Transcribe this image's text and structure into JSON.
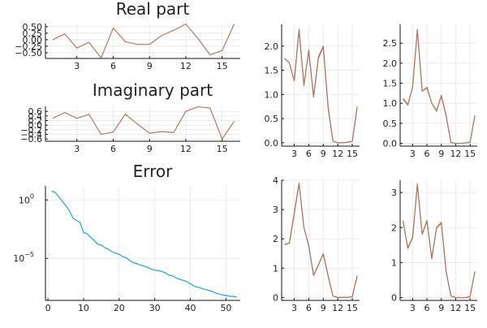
{
  "colors": {
    "series_main": "#B07A62",
    "series_error": "#1FA2DB"
  },
  "chart_data": [
    {
      "id": "real",
      "type": "line",
      "title": "Real part",
      "xlabel": "",
      "ylabel": "",
      "x": [
        1,
        2,
        3,
        4,
        5,
        6,
        7,
        8,
        9,
        10,
        11,
        12,
        13,
        14,
        15,
        16
      ],
      "series": [
        {
          "values": [
            0.0,
            0.22,
            -0.32,
            -0.1,
            -0.7,
            0.45,
            -0.08,
            -0.18,
            -0.18,
            0.16,
            0.36,
            0.6,
            0.05,
            -0.58,
            -0.42,
            0.6
          ]
        }
      ],
      "xlim": [
        0.4,
        16.5
      ],
      "ylim": [
        -0.72,
        0.62
      ],
      "xticks": [
        3,
        6,
        9,
        12,
        15
      ],
      "yticks": [
        -0.5,
        -0.25,
        0,
        0.25,
        0.5
      ],
      "xticklabels": [
        "3",
        "6",
        "9",
        "12",
        "15"
      ],
      "yticklabels": [
        "−0.50",
        "−0.25",
        "0.00",
        "0.25",
        "0.50"
      ],
      "grid": true
    },
    {
      "id": "imag",
      "type": "line",
      "title": "Imaginary part",
      "xlabel": "",
      "ylabel": "",
      "x": [
        1,
        2,
        3,
        4,
        5,
        6,
        7,
        8,
        9,
        10,
        11,
        12,
        13,
        14,
        15,
        16
      ],
      "series": [
        {
          "values": [
            0.3,
            0.55,
            0.3,
            0.47,
            -0.4,
            -0.3,
            0.48,
            0.05,
            -0.35,
            -0.28,
            -0.32,
            0.6,
            0.8,
            0.75,
            -0.6,
            0.17
          ]
        }
      ],
      "xlim": [
        0.4,
        16.5
      ],
      "ylim": [
        -0.7,
        0.82
      ],
      "xticks": [
        3,
        6,
        9,
        12,
        15
      ],
      "yticks": [
        -0.6,
        -0.4,
        -0.2,
        0,
        0.2,
        0.4,
        0.6
      ],
      "xticklabels": [
        "3",
        "6",
        "9",
        "12",
        "15"
      ],
      "yticklabels": [
        "−0.6",
        "−0.4",
        "−0.2",
        "0.0",
        "0.2",
        "0.4",
        "0.6"
      ],
      "grid": true
    },
    {
      "id": "error",
      "type": "line",
      "title": "Error",
      "xlabel": "",
      "ylabel": "",
      "yscale": "log",
      "x": [
        1,
        2,
        3,
        4,
        5,
        6,
        7,
        8,
        9,
        10,
        11,
        12,
        13,
        14,
        15,
        16,
        17,
        18,
        19,
        20,
        21,
        22,
        23,
        24,
        25,
        26,
        27,
        28,
        29,
        30,
        31,
        32,
        33,
        34,
        35,
        36,
        37,
        38,
        39,
        40,
        41,
        42,
        43,
        44,
        45,
        46,
        47,
        48,
        49,
        50,
        51,
        52,
        53
      ],
      "series": [
        {
          "values": [
            5.6,
            4.5,
            2.0,
            0.8,
            0.32,
            0.13,
            0.028,
            0.018,
            0.012,
            0.0016,
            0.0013,
            0.00063,
            0.00034,
            0.00016,
            0.00014,
            8e-05,
            6e-05,
            3.6e-05,
            2.8e-05,
            2.2e-05,
            1.4e-05,
            1.1e-05,
            6.7e-06,
            4.2e-06,
            3.5e-06,
            2.6e-06,
            2.2e-06,
            1.7e-06,
            1.2e-06,
            9.6e-07,
            8.9e-07,
            7.5e-07,
            5.6e-07,
            3.6e-07,
            3.2e-07,
            2.1e-07,
            1.6e-07,
            1.3e-07,
            1e-07,
            6.7e-08,
            4.2e-08,
            3.5e-08,
            2.8e-08,
            2.2e-08,
            1.9e-08,
            1.5e-08,
            1.1e-08,
            8.9e-09,
            7.5e-09,
            6.7e-09,
            5.6e-09,
            5.6e-09,
            4.7e-09
          ]
        }
      ],
      "xlim": [
        -0.7,
        54
      ],
      "ylim_log10": [
        -8.6,
        1.2
      ],
      "xticks": [
        0,
        10,
        20,
        30,
        40,
        50
      ],
      "yticks_log10": [
        0,
        -5
      ],
      "xticklabels": [
        "0",
        "10",
        "20",
        "30",
        "40",
        "50"
      ],
      "yticklabels": [
        "10",
        "10"
      ],
      "yticklabel_exponents": [
        "0",
        "−5"
      ],
      "grid": true
    },
    {
      "id": "abs-top-left",
      "type": "line",
      "title": "",
      "xlabel": "",
      "ylabel": "",
      "x": [
        1,
        2,
        3,
        4,
        5,
        6,
        7,
        8,
        9,
        10,
        11,
        12,
        13,
        14,
        15,
        16
      ],
      "series": [
        {
          "values": [
            1.75,
            1.65,
            1.28,
            2.35,
            1.2,
            1.9,
            0.95,
            1.75,
            1.98,
            0.75,
            0.03,
            0.0,
            0.0,
            0.01,
            0.03,
            0.75
          ]
        },
        {
          "values": [
            1.75,
            1.65,
            1.28,
            2.32,
            1.18,
            1.92,
            0.95,
            1.78,
            2.0,
            0.72,
            0.03,
            0.0,
            0.0,
            0.01,
            0.03,
            0.73
          ]
        }
      ],
      "xlim": [
        0.4,
        16.5
      ],
      "ylim": [
        -0.07,
        2.45
      ],
      "xticks": [
        3,
        6,
        9,
        12,
        15
      ],
      "yticks": [
        0,
        0.5,
        1.0,
        1.5,
        2.0
      ],
      "xticklabels": [
        "3",
        "6",
        "9",
        "12",
        "15"
      ],
      "yticklabels": [
        "0.0",
        "0.5",
        "1.0",
        "1.5",
        "2.0"
      ],
      "grid": true
    },
    {
      "id": "abs-top-right",
      "type": "line",
      "title": "",
      "xlabel": "",
      "ylabel": "",
      "x": [
        1,
        2,
        3,
        4,
        5,
        6,
        7,
        8,
        9,
        10,
        11,
        12,
        13,
        14,
        15,
        16
      ],
      "series": [
        {
          "values": [
            1.1,
            0.95,
            1.4,
            2.85,
            1.3,
            1.4,
            1.0,
            0.8,
            1.2,
            0.7,
            0.02,
            0.0,
            0.0,
            0.01,
            0.03,
            0.7
          ]
        },
        {
          "values": [
            1.12,
            0.97,
            1.4,
            2.82,
            1.3,
            1.38,
            1.0,
            0.82,
            1.18,
            0.68,
            0.02,
            0.0,
            0.0,
            0.01,
            0.03,
            0.68
          ]
        }
      ],
      "xlim": [
        0.4,
        16.5
      ],
      "ylim": [
        -0.07,
        2.97
      ],
      "xticks": [
        3,
        6,
        9,
        12,
        15
      ],
      "yticks": [
        0,
        0.5,
        1.0,
        1.5,
        2.0,
        2.5
      ],
      "xticklabels": [
        "3",
        "6",
        "9",
        "12",
        "15"
      ],
      "yticklabels": [
        "0.0",
        "0.5",
        "1.0",
        "1.5",
        "2.0",
        "2.5"
      ],
      "grid": true
    },
    {
      "id": "abs-bottom-left",
      "type": "line",
      "title": "",
      "xlabel": "",
      "ylabel": "",
      "x": [
        1,
        2,
        3,
        4,
        5,
        6,
        7,
        8,
        9,
        10,
        11,
        12,
        13,
        14,
        15,
        16
      ],
      "series": [
        {
          "values": [
            1.8,
            1.85,
            2.9,
            3.9,
            2.4,
            1.75,
            0.75,
            1.1,
            1.5,
            0.75,
            0.05,
            0.0,
            0.0,
            0.0,
            0.03,
            0.75
          ]
        },
        {
          "values": [
            1.82,
            1.85,
            2.85,
            3.88,
            2.38,
            1.78,
            0.75,
            1.12,
            1.48,
            0.72,
            0.05,
            0.0,
            0.0,
            0.0,
            0.03,
            0.72
          ]
        }
      ],
      "xlim": [
        0.4,
        16.5
      ],
      "ylim": [
        -0.1,
        4.0
      ],
      "xticks": [
        3,
        6,
        9,
        12,
        15
      ],
      "yticks": [
        0,
        1,
        2,
        3,
        4
      ],
      "xticklabels": [
        "3",
        "6",
        "9",
        "12",
        "15"
      ],
      "yticklabels": [
        "0",
        "1",
        "2",
        "3",
        "4"
      ],
      "grid": true
    },
    {
      "id": "abs-bottom-right",
      "type": "line",
      "title": "",
      "xlabel": "",
      "ylabel": "",
      "x": [
        1,
        2,
        3,
        4,
        5,
        6,
        7,
        8,
        9,
        10,
        11,
        12,
        13,
        14,
        15,
        16
      ],
      "series": [
        {
          "values": [
            2.2,
            1.4,
            1.7,
            3.25,
            1.8,
            2.2,
            1.1,
            2.0,
            2.15,
            0.75,
            0.05,
            0.0,
            0.0,
            0.0,
            0.03,
            0.75
          ]
        },
        {
          "values": [
            2.18,
            1.42,
            1.72,
            3.22,
            1.82,
            2.18,
            1.12,
            1.98,
            2.12,
            0.73,
            0.05,
            0.0,
            0.0,
            0.0,
            0.03,
            0.73
          ]
        }
      ],
      "xlim": [
        0.4,
        16.5
      ],
      "ylim": [
        -0.08,
        3.35
      ],
      "xticks": [
        3,
        6,
        9,
        12,
        15
      ],
      "yticks": [
        0,
        1,
        2,
        3
      ],
      "xticklabels": [
        "3",
        "6",
        "9",
        "12",
        "15"
      ],
      "yticklabels": [
        "0",
        "1",
        "2",
        "3"
      ],
      "grid": true
    }
  ]
}
